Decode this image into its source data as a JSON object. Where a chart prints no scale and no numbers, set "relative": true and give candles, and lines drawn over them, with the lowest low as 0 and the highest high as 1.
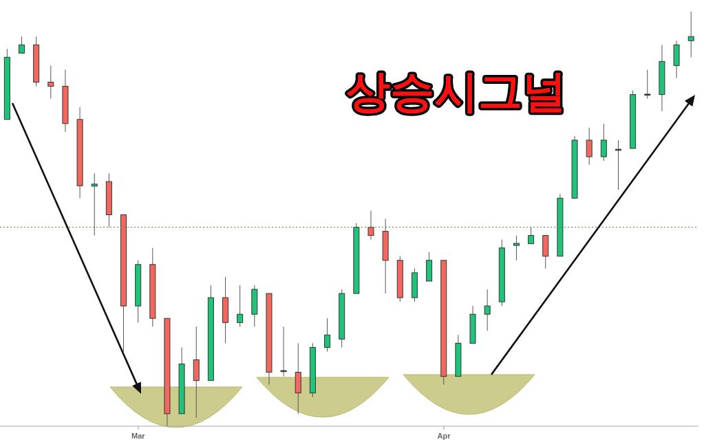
{
  "chart_data": {
    "type": "candlestick",
    "title": "상승시그널",
    "relative": true,
    "categories": [
      null,
      null,
      null,
      null,
      null,
      null,
      null,
      null,
      null,
      "Mar",
      null,
      null,
      null,
      null,
      null,
      null,
      null,
      null,
      null,
      null,
      null,
      null,
      null,
      null,
      null,
      null,
      null,
      null,
      null,
      null,
      "Apr",
      null,
      null,
      null,
      null,
      null,
      null,
      null,
      null,
      null,
      null,
      null,
      null,
      null,
      null,
      null,
      null,
      null
    ],
    "ohlc": [
      [
        0.74,
        0.91,
        0.74,
        0.89
      ],
      [
        0.9,
        0.94,
        0.9,
        0.92
      ],
      [
        0.92,
        0.94,
        0.82,
        0.83
      ],
      [
        0.83,
        0.87,
        0.79,
        0.82
      ],
      [
        0.82,
        0.86,
        0.71,
        0.73
      ],
      [
        0.74,
        0.77,
        0.55,
        0.58
      ],
      [
        0.579,
        0.61,
        0.46,
        0.584
      ],
      [
        0.59,
        0.61,
        0.48,
        0.51
      ],
      [
        0.51,
        0.51,
        0.18,
        0.29
      ],
      [
        0.29,
        0.4,
        0.25,
        0.39
      ],
      [
        0.39,
        0.43,
        0.24,
        0.26
      ],
      [
        0.26,
        0.26,
        0,
        0.03
      ],
      [
        0.03,
        0.19,
        0.03,
        0.15
      ],
      [
        0.16,
        0.24,
        0.02,
        0.11
      ],
      [
        0.11,
        0.34,
        0.11,
        0.31
      ],
      [
        0.31,
        0.36,
        0.2,
        0.25
      ],
      [
        0.25,
        0.34,
        0.24,
        0.27
      ],
      [
        0.27,
        0.34,
        0.24,
        0.33
      ],
      [
        0.32,
        0.32,
        0.1,
        0.13
      ],
      [
        0.134,
        0.24,
        0.12,
        0.133
      ],
      [
        0.13,
        0.2,
        0.03,
        0.08
      ],
      [
        0.08,
        0.2,
        0.07,
        0.19
      ],
      [
        0.19,
        0.26,
        0.18,
        0.22
      ],
      [
        0.21,
        0.33,
        0.19,
        0.32
      ],
      [
        0.32,
        0.49,
        0.32,
        0.48
      ],
      [
        0.48,
        0.52,
        0.45,
        0.46
      ],
      [
        0.47,
        0.5,
        0.32,
        0.4
      ],
      [
        0.4,
        0.41,
        0.3,
        0.31
      ],
      [
        0.31,
        0.38,
        0.3,
        0.37
      ],
      [
        0.35,
        0.42,
        0.35,
        0.4
      ],
      [
        0.4,
        0.4,
        0.1,
        0.12
      ],
      [
        0.12,
        0.22,
        0.12,
        0.2
      ],
      [
        0.2,
        0.29,
        0.2,
        0.27
      ],
      [
        0.27,
        0.33,
        0.23,
        0.29
      ],
      [
        0.3,
        0.45,
        0.29,
        0.43
      ],
      [
        0.436,
        0.46,
        0.4,
        0.441
      ],
      [
        0.44,
        0.48,
        0.44,
        0.46
      ],
      [
        0.46,
        0.46,
        0.38,
        0.41
      ],
      [
        0.41,
        0.56,
        0.41,
        0.55
      ],
      [
        0.55,
        0.7,
        0.55,
        0.69
      ],
      [
        0.69,
        0.72,
        0.63,
        0.65
      ],
      [
        0.65,
        0.73,
        0.64,
        0.69
      ],
      [
        0.667,
        0.69,
        0.57,
        0.668
      ],
      [
        0.67,
        0.81,
        0.67,
        0.8
      ],
      [
        0.799,
        0.86,
        0.79,
        0.801
      ],
      [
        0.8,
        0.92,
        0.76,
        0.88
      ],
      [
        0.87,
        0.93,
        0.84,
        0.92
      ],
      [
        0.93,
        1,
        0.89,
        0.94
      ]
    ],
    "colors": [
      "#1fc47a",
      "#1fc47a",
      "#f2685f",
      "#f2685f",
      "#f2685f",
      "#f2685f",
      "#1fc47a",
      "#f2685f",
      "#f2685f",
      "#1fc47a",
      "#f2685f",
      "#f2685f",
      "#1fc47a",
      "#f2685f",
      "#1fc47a",
      "#f2685f",
      "#1fc47a",
      "#1fc47a",
      "#f2685f",
      "#3a3a3a",
      "#f2685f",
      "#1fc47a",
      "#1fc47a",
      "#1fc47a",
      "#1fc47a",
      "#f2685f",
      "#f2685f",
      "#f2685f",
      "#1fc47a",
      "#1fc47a",
      "#f2685f",
      "#1fc47a",
      "#1fc47a",
      "#1fc47a",
      "#1fc47a",
      "#1fc47a",
      "#1fc47a",
      "#f2685f",
      "#1fc47a",
      "#1fc47a",
      "#f2685f",
      "#1fc47a",
      "#3a3a3a",
      "#1fc47a",
      "#3a3a3a",
      "#1fc47a",
      "#1fc47a",
      "#1fc47a"
    ],
    "ref_lines": [
      {
        "axis": "y",
        "value": 0.48,
        "color": "#4a8a3a",
        "line_style": "dotted"
      }
    ]
  }
}
